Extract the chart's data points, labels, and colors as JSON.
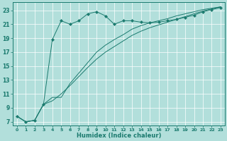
{
  "xlabel": "Humidex (Indice chaleur)",
  "bg_color": "#b2dfdb",
  "grid_color": "#c8e8e4",
  "line_color": "#1a7a6e",
  "xlim": [
    -0.5,
    23.5
  ],
  "ylim": [
    6.5,
    24.2
  ],
  "xticks": [
    0,
    1,
    2,
    3,
    4,
    5,
    6,
    7,
    8,
    9,
    10,
    11,
    12,
    13,
    14,
    15,
    16,
    17,
    18,
    19,
    20,
    21,
    22,
    23
  ],
  "yticks": [
    7,
    9,
    11,
    13,
    15,
    17,
    19,
    21,
    23
  ],
  "line1_x": [
    0,
    1,
    2,
    3,
    4,
    5,
    6,
    7,
    8,
    9,
    10,
    11,
    12,
    13,
    14,
    15,
    16,
    17,
    18,
    19,
    20,
    21,
    22,
    23
  ],
  "line1_y": [
    7.8,
    7.0,
    7.2,
    9.5,
    18.8,
    21.5,
    21.0,
    21.5,
    22.5,
    22.8,
    22.2,
    21.0,
    21.5,
    21.5,
    21.3,
    21.2,
    21.3,
    21.5,
    21.7,
    22.0,
    22.3,
    22.8,
    23.1,
    23.4
  ],
  "line2_x": [
    0,
    1,
    2,
    3,
    4,
    5,
    6,
    7,
    8,
    9,
    10,
    11,
    12,
    13,
    14,
    15,
    16,
    17,
    18,
    19,
    20,
    21,
    22,
    23
  ],
  "line2_y": [
    7.8,
    7.0,
    7.2,
    9.5,
    10.5,
    10.5,
    12.5,
    14.0,
    15.5,
    17.0,
    18.0,
    18.8,
    19.5,
    20.3,
    20.8,
    21.2,
    21.5,
    21.8,
    22.2,
    22.5,
    22.8,
    23.1,
    23.3,
    23.5
  ],
  "line3_x": [
    0,
    1,
    2,
    3,
    4,
    5,
    6,
    7,
    8,
    9,
    10,
    11,
    12,
    13,
    14,
    15,
    16,
    17,
    18,
    19,
    20,
    21,
    22,
    23
  ],
  "line3_y": [
    7.8,
    7.0,
    7.2,
    9.5,
    10.0,
    11.0,
    12.2,
    13.5,
    14.8,
    16.0,
    17.0,
    17.8,
    18.6,
    19.4,
    20.0,
    20.5,
    20.9,
    21.3,
    21.7,
    22.1,
    22.5,
    22.9,
    23.2,
    23.5
  ]
}
